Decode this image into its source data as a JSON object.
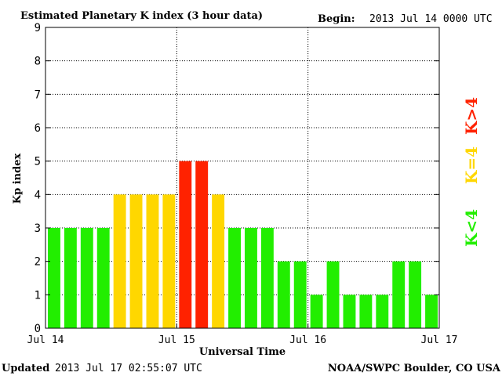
{
  "chart_data": {
    "type": "bar",
    "title": "Estimated Planetary K index (3 hour data)",
    "begin_label": "Begin:",
    "begin_value": "2013 Jul 14 0000 UTC",
    "xlabel": "Universal Time",
    "ylabel": "Kp index",
    "ylim": [
      0,
      9
    ],
    "yticks": [
      "0",
      "1",
      "2",
      "3",
      "4",
      "5",
      "6",
      "7",
      "8",
      "9"
    ],
    "xticks": [
      "Jul 14",
      "Jul 15",
      "Jul 16",
      "Jul 17"
    ],
    "values": [
      3,
      3,
      3,
      3,
      4,
      4,
      4,
      4,
      5,
      5,
      4,
      3,
      3,
      3,
      2,
      2,
      1,
      2,
      1,
      1,
      1,
      2,
      2,
      1
    ],
    "grid": true,
    "colors": {
      "low": "#22ee00",
      "mid": "#ffd700",
      "high": "#ff2200"
    },
    "legend": [
      {
        "label": "K<4",
        "color": "#22ee00"
      },
      {
        "label": "K=4",
        "color": "#ffd700"
      },
      {
        "label": "K>4",
        "color": "#ff2200"
      }
    ]
  },
  "footer": {
    "updated_label": "Updated",
    "updated_value": "2013 Jul 17 02:55:07 UTC",
    "source": "NOAA/SWPC Boulder, CO USA"
  }
}
